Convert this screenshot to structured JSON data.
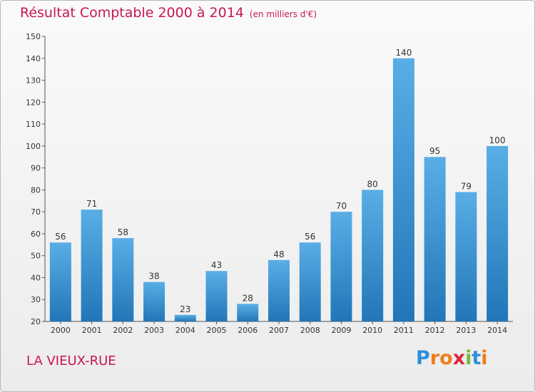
{
  "header": {
    "title": "Résultat Comptable 2000 à 2014",
    "subtitle": "(en milliers d'€)"
  },
  "footer": {
    "town": "LA VIEUX-RUE",
    "logo_letters": [
      "P",
      "r",
      "o",
      "x",
      "i",
      "t",
      "i"
    ],
    "logo_colors": [
      "#2e8fd8",
      "#f07c1c",
      "#f07c1c",
      "#d7263d",
      "#7ab83a",
      "#2e8fd8",
      "#f07c1c"
    ]
  },
  "chart_data": {
    "type": "bar",
    "title": "Résultat Comptable 2000 à 2014",
    "subtitle": "(en milliers d'€)",
    "xlabel": "",
    "ylabel": "",
    "categories": [
      "2000",
      "2001",
      "2002",
      "2003",
      "2004",
      "2005",
      "2006",
      "2007",
      "2008",
      "2009",
      "2010",
      "2011",
      "2012",
      "2013",
      "2014"
    ],
    "values": [
      56,
      71,
      58,
      38,
      23,
      43,
      28,
      48,
      56,
      70,
      80,
      140,
      95,
      79,
      100
    ],
    "ylim": [
      20,
      150
    ],
    "yticks": [
      20,
      30,
      40,
      50,
      60,
      70,
      80,
      90,
      100,
      110,
      120,
      130,
      140,
      150
    ],
    "grid": false,
    "legend": "none",
    "bar_color_light": "#5aaee6",
    "bar_color_dark": "#2276b8"
  }
}
